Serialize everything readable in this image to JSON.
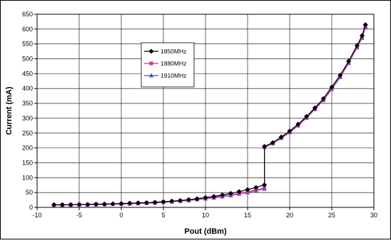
{
  "chart_data": {
    "type": "line",
    "title": "",
    "xlabel": "Pout (dBm)",
    "ylabel": "Current (mA)",
    "xlim": [
      -10,
      30
    ],
    "ylim": [
      0,
      650
    ],
    "xticks": [
      -10,
      -5,
      0,
      5,
      10,
      15,
      20,
      25,
      30
    ],
    "yticks": [
      0,
      50,
      100,
      150,
      200,
      250,
      300,
      350,
      400,
      450,
      500,
      550,
      600,
      650
    ],
    "grid": true,
    "legend_position": "upper-left-inside",
    "series": [
      {
        "name": "1850MHz",
        "color": "#000000",
        "marker": "diamond",
        "x": [
          -8,
          -7,
          -6,
          -5,
          -4,
          -3,
          -2,
          -1,
          0,
          1,
          2,
          3,
          4,
          5,
          6,
          7,
          8,
          9,
          10,
          11,
          12,
          13,
          14,
          15,
          16,
          17,
          17,
          18,
          19,
          20,
          21,
          22,
          23,
          24,
          25,
          26,
          27,
          28,
          28.6,
          29
        ],
        "y": [
          9,
          9,
          9,
          10,
          10,
          11,
          11,
          12,
          13,
          14,
          15,
          16,
          17,
          19,
          21,
          23,
          26,
          29,
          33,
          37,
          42,
          47,
          53,
          60,
          67,
          76,
          205,
          218,
          237,
          257,
          280,
          306,
          335,
          366,
          405,
          445,
          492,
          545,
          578,
          615
        ]
      },
      {
        "name": "1880MHz",
        "color": "#cc3399",
        "marker": "square",
        "x": [
          -8,
          -7,
          -6,
          -5,
          -4,
          -3,
          -2,
          -1,
          0,
          1,
          2,
          3,
          4,
          5,
          6,
          7,
          8,
          9,
          10,
          11,
          12,
          13,
          14,
          15,
          16,
          17,
          17,
          18,
          19,
          20,
          21,
          22,
          23,
          24,
          25,
          26,
          27,
          28,
          28.6,
          29
        ],
        "y": [
          8,
          8,
          9,
          9,
          9,
          10,
          10,
          11,
          12,
          13,
          14,
          15,
          16,
          18,
          20,
          22,
          24,
          27,
          30,
          34,
          38,
          42,
          47,
          53,
          59,
          65,
          203,
          216,
          234,
          254,
          277,
          303,
          332,
          362,
          400,
          440,
          487,
          540,
          573,
          610
        ]
      },
      {
        "name": "1910MHz",
        "color": "#4455cc",
        "marker": "triangle",
        "x": [
          -8,
          -7,
          -6,
          -5,
          -4,
          -3,
          -2,
          -1,
          0,
          1,
          2,
          3,
          4,
          5,
          6,
          7,
          8,
          9,
          10,
          11,
          12,
          13,
          14,
          15,
          16,
          17,
          17,
          18,
          19,
          20,
          21,
          22,
          23,
          24,
          25,
          26,
          27,
          28,
          28.6,
          29
        ],
        "y": [
          8,
          8,
          8,
          9,
          9,
          9,
          10,
          11,
          11,
          12,
          13,
          14,
          15,
          17,
          19,
          21,
          23,
          26,
          29,
          32,
          36,
          40,
          45,
          50,
          56,
          62,
          202,
          215,
          233,
          252,
          275,
          301,
          330,
          360,
          398,
          438,
          485,
          538,
          570,
          607
        ]
      }
    ]
  }
}
